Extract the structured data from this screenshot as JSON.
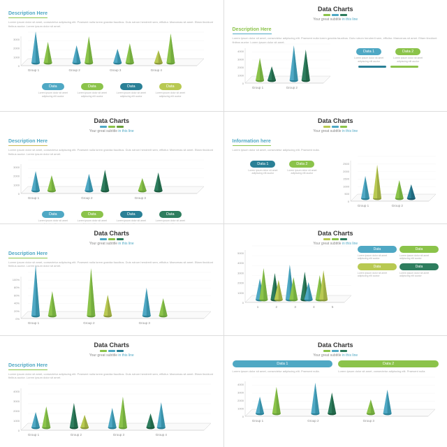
{
  "common": {
    "title": "Data Charts",
    "subtitle_pre": "Your great subtitle ",
    "subtitle_accent": "in this line",
    "lorem": "Lorem ipsum dolor sit amet, consectetur adipiscing elit. Praesent nulla lorem gravida faucibus. Duis rutrum hendrerit sem, efficitur. Maecenas sit amet. Etiam tincidunt finibus auctor. Lorem ipsum dolor sit amet.",
    "lorem_short": "Lorem ipsum dolor sit amet, consectetur adipiscing elit. Praesent nulla.",
    "pill_lorem": "Lorem ipsum dolor sit amet adipiscing elit auctor"
  },
  "palette": {
    "teal": "#4fa8c4",
    "teal_dark": "#2a8096",
    "green": "#8bc34a",
    "green_dark": "#689f38",
    "olive": "#b8c952",
    "forest": "#2e7d5e",
    "yellow": "#c9b952"
  },
  "accent_bars": [
    [
      "#8bc34a",
      "#4fa8c4",
      "#2a8096"
    ],
    [
      "#8bc34a",
      "#4fa8c4",
      "#2e7d5e"
    ],
    [
      "#4fa8c4",
      "#8bc34a",
      "#689f38"
    ],
    [
      "#b8c952",
      "#4fa8c4",
      "#8bc34a"
    ],
    [
      "#4fa8c4",
      "#8bc34a",
      "#2e7d5e"
    ],
    [
      "#b8c952",
      "#8bc34a",
      "#2e7d5e"
    ]
  ],
  "slides": [
    {
      "type": "cones-4pill-below",
      "desc_header": "Description Here",
      "desc_color": "#4fa8c4",
      "desc_underline": "#8bc34a",
      "y_ticks": [
        0,
        1000,
        2000,
        3000
      ],
      "groups": [
        "Group 1",
        "Group 2",
        "Group 3",
        "Group 4"
      ],
      "cones": [
        {
          "gx": 0,
          "h": 45,
          "c1": "#4fa8c4",
          "c2": "#2a8096"
        },
        {
          "gx": 0.3,
          "h": 30,
          "c1": "#8bc34a",
          "c2": "#689f38"
        },
        {
          "gx": 1,
          "h": 25,
          "c1": "#4fa8c4",
          "c2": "#2a8096"
        },
        {
          "gx": 1.3,
          "h": 38,
          "c1": "#8bc34a",
          "c2": "#689f38"
        },
        {
          "gx": 2,
          "h": 20,
          "c1": "#4fa8c4",
          "c2": "#2a8096"
        },
        {
          "gx": 2.3,
          "h": 28,
          "c1": "#8bc34a",
          "c2": "#689f38"
        },
        {
          "gx": 3,
          "h": 18,
          "c1": "#b8c952",
          "c2": "#8a9a3a"
        },
        {
          "gx": 3.3,
          "h": 42,
          "c1": "#8bc34a",
          "c2": "#689f38"
        }
      ],
      "pills": [
        {
          "label": "Data",
          "color": "#4fa8c4"
        },
        {
          "label": "Data",
          "color": "#8bc34a"
        },
        {
          "label": "Data",
          "color": "#2a8096"
        },
        {
          "label": "Data",
          "color": "#b8c952"
        }
      ]
    },
    {
      "type": "cones-2pill-right",
      "desc_header": "Description Here",
      "desc_color": "#8bc34a",
      "desc_underline": "#4fa8c4",
      "y_ticks": [
        0,
        1000,
        2000,
        3000,
        4000
      ],
      "groups": [
        "Group 1",
        "Group 2"
      ],
      "cones": [
        {
          "gx": 0,
          "h": 32,
          "c1": "#8bc34a",
          "c2": "#689f38"
        },
        {
          "gx": 0.35,
          "h": 20,
          "c1": "#2e7d5e",
          "c2": "#1a5a3e"
        },
        {
          "gx": 1,
          "h": 50,
          "c1": "#4fa8c4",
          "c2": "#2a8096"
        },
        {
          "gx": 1.35,
          "h": 44,
          "c1": "#2e7d5e",
          "c2": "#1a5a3e"
        }
      ],
      "pills": [
        {
          "label": "Data 1",
          "color": "#4fa8c4"
        },
        {
          "label": "Data 2",
          "color": "#8bc34a"
        }
      ]
    },
    {
      "type": "cones-4pill-below",
      "desc_header": "Description Here",
      "desc_color": "#4fa8c4",
      "desc_underline": "#c9b952",
      "y_ticks": [
        0,
        1000,
        2000,
        3000
      ],
      "groups": [
        "Group 1",
        "Group 2",
        "Group 3"
      ],
      "cones": [
        {
          "gx": 0,
          "h": 28,
          "c1": "#4fa8c4",
          "c2": "#2a8096"
        },
        {
          "gx": 0.3,
          "h": 22,
          "c1": "#8bc34a",
          "c2": "#689f38"
        },
        {
          "gx": 1,
          "h": 24,
          "c1": "#4fa8c4",
          "c2": "#2a8096"
        },
        {
          "gx": 1.3,
          "h": 30,
          "c1": "#2e7d5e",
          "c2": "#1a5a3e"
        },
        {
          "gx": 2,
          "h": 18,
          "c1": "#8bc34a",
          "c2": "#689f38"
        },
        {
          "gx": 2.3,
          "h": 26,
          "c1": "#2e7d5e",
          "c2": "#1a5a3e"
        }
      ],
      "pills": [
        {
          "label": "Data",
          "color": "#4fa8c4"
        },
        {
          "label": "Data",
          "color": "#8bc34a"
        },
        {
          "label": "Data",
          "color": "#2a8096"
        },
        {
          "label": "Data",
          "color": "#2e7d5e"
        }
      ]
    },
    {
      "type": "cones-2pill-left",
      "desc_header": "Information here",
      "desc_color": "#4fa8c4",
      "desc_underline": "#8bc34a",
      "y_ticks": [
        0,
        500,
        1000,
        1500,
        2000,
        2500
      ],
      "groups": [
        "Group 1",
        "Group 2"
      ],
      "cones": [
        {
          "gx": 0,
          "h": 32,
          "c1": "#4fa8c4",
          "c2": "#2a8096"
        },
        {
          "gx": 0.35,
          "h": 48,
          "c1": "#b8c952",
          "c2": "#8a9a3a"
        },
        {
          "gx": 1,
          "h": 26,
          "c1": "#8bc34a",
          "c2": "#689f38"
        },
        {
          "gx": 1.35,
          "h": 20,
          "c1": "#2a8096",
          "c2": "#1a5a6e"
        }
      ],
      "pills": [
        {
          "label": "Data 1",
          "color": "#2a8096"
        },
        {
          "label": "Data 2",
          "color": "#8bc34a"
        }
      ]
    },
    {
      "type": "cones-wide",
      "desc_header": "Description Here",
      "desc_color": "#4fa8c4",
      "desc_underline": "#8bc34a",
      "y_ticks": [
        "0%",
        "20%",
        "40%",
        "60%",
        "80%",
        "100%"
      ],
      "groups": [
        "Group 1",
        "Group 2",
        "Group 3"
      ],
      "cones": [
        {
          "gx": 0,
          "h": 72,
          "c1": "#4fa8c4",
          "c2": "#2a8096"
        },
        {
          "gx": 0.3,
          "h": 35,
          "c1": "#8bc34a",
          "c2": "#689f38"
        },
        {
          "gx": 1,
          "h": 68,
          "c1": "#8bc34a",
          "c2": "#689f38"
        },
        {
          "gx": 1.3,
          "h": 30,
          "c1": "#b8c952",
          "c2": "#8a9a3a"
        },
        {
          "gx": 2,
          "h": 40,
          "c1": "#4fa8c4",
          "c2": "#2a8096"
        },
        {
          "gx": 2.3,
          "h": 25,
          "c1": "#8bc34a",
          "c2": "#689f38"
        }
      ]
    },
    {
      "type": "cones-4pill-stacked-right",
      "desc_header": "Description Here",
      "desc_color": "#4fa8c4",
      "desc_underline": "#8bc34a",
      "y_ticks": [
        0,
        1000,
        2000,
        3000,
        4000,
        5000
      ],
      "groups": [
        "1",
        "2",
        "3",
        "4",
        "5"
      ],
      "cones": [
        {
          "gx": 0,
          "h": 30,
          "c1": "#4fa8c4",
          "c2": "#2a8096"
        },
        {
          "gx": 0.2,
          "h": 45,
          "c1": "#8bc34a",
          "c2": "#689f38"
        },
        {
          "gx": 0.8,
          "h": 38,
          "c1": "#2e7d5e",
          "c2": "#1a5a3e"
        },
        {
          "gx": 1,
          "h": 28,
          "c1": "#b8c952",
          "c2": "#8a9a3a"
        },
        {
          "gx": 1.6,
          "h": 50,
          "c1": "#4fa8c4",
          "c2": "#2a8096"
        },
        {
          "gx": 1.8,
          "h": 32,
          "c1": "#8bc34a",
          "c2": "#689f38"
        },
        {
          "gx": 2.4,
          "h": 40,
          "c1": "#2e7d5e",
          "c2": "#1a5a3e"
        },
        {
          "gx": 2.6,
          "h": 25,
          "c1": "#4fa8c4",
          "c2": "#2a8096"
        },
        {
          "gx": 3.2,
          "h": 35,
          "c1": "#8bc34a",
          "c2": "#689f38"
        },
        {
          "gx": 3.4,
          "h": 42,
          "c1": "#b8c952",
          "c2": "#8a9a3a"
        }
      ],
      "pills": [
        {
          "label": "Data",
          "color": "#4fa8c4"
        },
        {
          "label": "Data",
          "color": "#8bc34a"
        },
        {
          "label": "Data",
          "color": "#b8c952"
        },
        {
          "label": "Data",
          "color": "#2e7d5e"
        }
      ]
    },
    {
      "type": "cones-wide",
      "desc_header": "Description Here",
      "desc_color": "#4fa8c4",
      "desc_underline": "#8bc34a",
      "y_ticks": [
        0,
        1000,
        2000,
        3000,
        4000
      ],
      "groups": [
        "Group 1",
        "Group 2",
        "Group 3",
        "Group 4"
      ],
      "cones": [
        {
          "gx": 0,
          "h": 22,
          "c1": "#4fa8c4",
          "c2": "#2a8096"
        },
        {
          "gx": 0.25,
          "h": 30,
          "c1": "#8bc34a",
          "c2": "#689f38"
        },
        {
          "gx": 0.9,
          "h": 35,
          "c1": "#2e7d5e",
          "c2": "#1a5a3e"
        },
        {
          "gx": 1.15,
          "h": 18,
          "c1": "#b8c952",
          "c2": "#8a9a3a"
        },
        {
          "gx": 1.8,
          "h": 28,
          "c1": "#4fa8c4",
          "c2": "#2a8096"
        },
        {
          "gx": 2.05,
          "h": 44,
          "c1": "#8bc34a",
          "c2": "#689f38"
        },
        {
          "gx": 2.7,
          "h": 20,
          "c1": "#2e7d5e",
          "c2": "#1a5a3e"
        },
        {
          "gx": 2.95,
          "h": 36,
          "c1": "#4fa8c4",
          "c2": "#2a8096"
        }
      ]
    },
    {
      "type": "cones-2pill-top",
      "desc_header": "",
      "y_ticks": [
        0,
        1000,
        2000,
        3000,
        4000
      ],
      "groups": [
        "Group 1",
        "Group 2",
        "Group 3"
      ],
      "cones": [
        {
          "gx": 0,
          "h": 24,
          "c1": "#4fa8c4",
          "c2": "#2a8096"
        },
        {
          "gx": 0.3,
          "h": 38,
          "c1": "#8bc34a",
          "c2": "#689f38"
        },
        {
          "gx": 1,
          "h": 44,
          "c1": "#4fa8c4",
          "c2": "#2a8096"
        },
        {
          "gx": 1.3,
          "h": 30,
          "c1": "#2e7d5e",
          "c2": "#1a5a3e"
        },
        {
          "gx": 2,
          "h": 20,
          "c1": "#8bc34a",
          "c2": "#689f38"
        },
        {
          "gx": 2.3,
          "h": 34,
          "c1": "#4fa8c4",
          "c2": "#2a8096"
        }
      ],
      "pills": [
        {
          "label": "Data 1",
          "color": "#4fa8c4"
        },
        {
          "label": "Data 2",
          "color": "#8bc34a"
        }
      ]
    }
  ]
}
